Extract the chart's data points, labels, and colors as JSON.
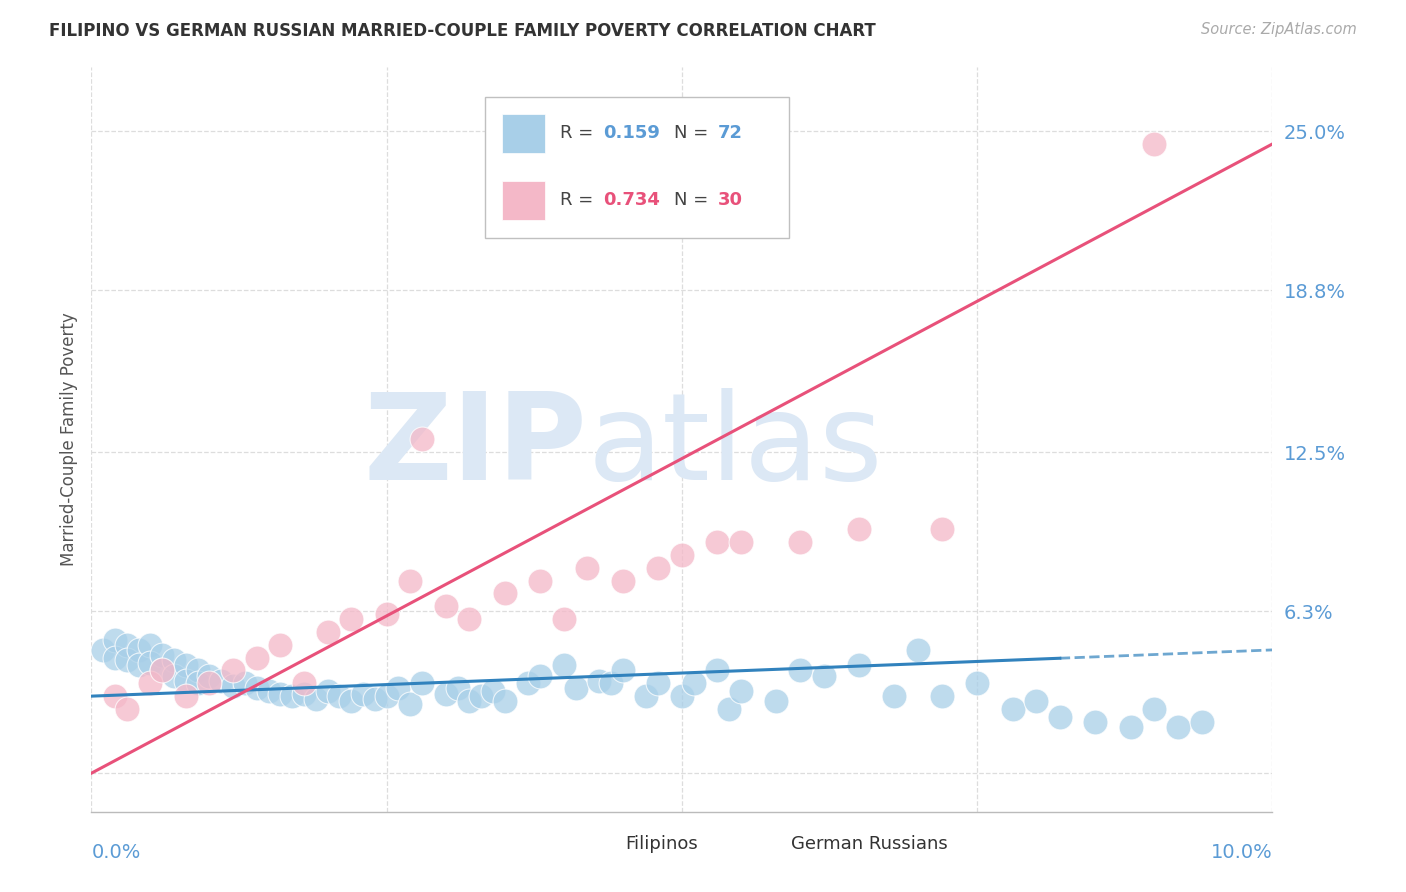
{
  "title": "FILIPINO VS GERMAN RUSSIAN MARRIED-COUPLE FAMILY POVERTY CORRELATION CHART",
  "source": "Source: ZipAtlas.com",
  "ylabel": "Married-Couple Family Poverty",
  "xlim": [
    0.0,
    0.1
  ],
  "ylim": [
    -0.015,
    0.275
  ],
  "ytick_vals": [
    0.0,
    0.063,
    0.125,
    0.188,
    0.25
  ],
  "ytick_labels": [
    "",
    "6.3%",
    "12.5%",
    "18.8%",
    "25.0%"
  ],
  "blue_color": "#a8cfe8",
  "pink_color": "#f4b8c8",
  "blue_line_color": "#3182bd",
  "pink_line_color": "#e8517a",
  "blue_r": "0.159",
  "blue_n": "72",
  "pink_r": "0.734",
  "pink_n": "30",
  "legend_label1": "Filipinos",
  "legend_label2": "German Russians",
  "grid_color": "#dddddd",
  "bg_color": "#ffffff",
  "title_color": "#333333",
  "tick_color": "#5b9bd5",
  "watermark_color": "#dce8f5",
  "blue_line_y0": 0.03,
  "blue_line_y1": 0.048,
  "pink_line_y0": 0.0,
  "pink_line_y1": 0.245
}
